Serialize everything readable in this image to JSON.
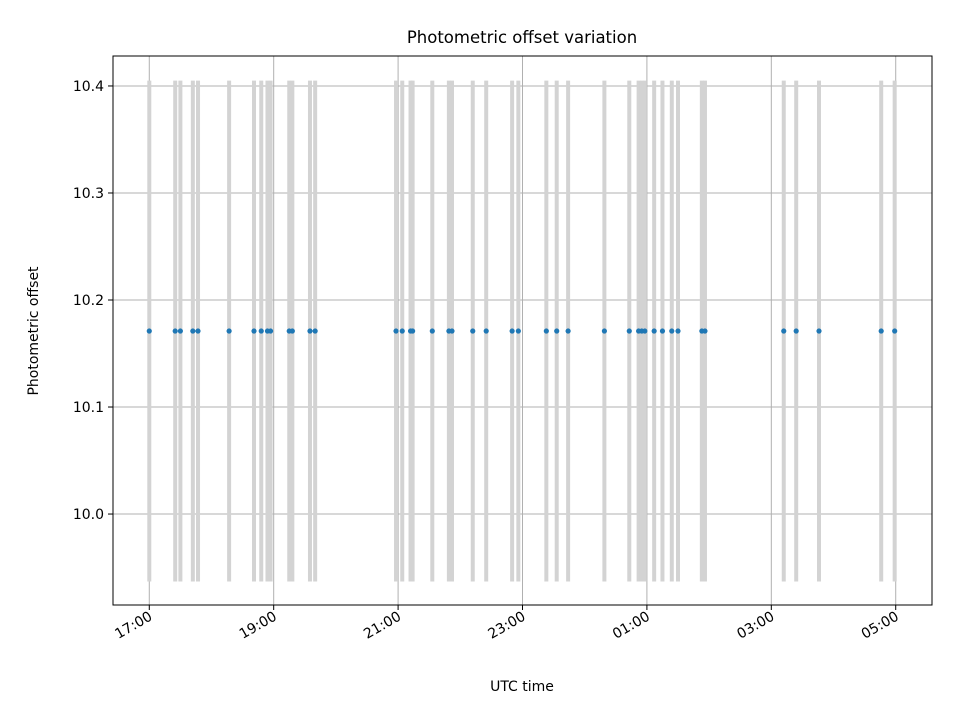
{
  "chart_data": {
    "type": "scatter",
    "title": "Photometric offset variation",
    "xlabel": "UTC time",
    "ylabel": "Photometric offset",
    "x_axis": {
      "type": "time",
      "min": "2000-01-01T16:25",
      "max": "2000-01-02T05:35",
      "ticks": [
        {
          "value": "2000-01-01T17:00",
          "label": "17:00"
        },
        {
          "value": "2000-01-01T19:00",
          "label": "19:00"
        },
        {
          "value": "2000-01-01T21:00",
          "label": "21:00"
        },
        {
          "value": "2000-01-01T23:00",
          "label": "23:00"
        },
        {
          "value": "2000-01-02T01:00",
          "label": "01:00"
        },
        {
          "value": "2000-01-02T03:00",
          "label": "03:00"
        },
        {
          "value": "2000-01-02T05:00",
          "label": "05:00"
        }
      ]
    },
    "y_axis": {
      "min": 9.915,
      "max": 10.428,
      "ticks": [
        {
          "value": 10.0,
          "label": "10.0"
        },
        {
          "value": 10.1,
          "label": "10.1"
        },
        {
          "value": 10.2,
          "label": "10.2"
        },
        {
          "value": 10.3,
          "label": "10.3"
        },
        {
          "value": 10.4,
          "label": "10.4"
        }
      ]
    },
    "grid": true,
    "series": [
      {
        "color": "#1f77b4",
        "marker_color": "#1f77b4",
        "errorbar_color": "#d3d3d3",
        "y_value": 10.171,
        "error": 0.234,
        "x": [
          "2000-01-01T17:00",
          "2000-01-01T17:25",
          "2000-01-01T17:30",
          "2000-01-01T17:42",
          "2000-01-01T17:47",
          "2000-01-01T18:17",
          "2000-01-01T18:41",
          "2000-01-01T18:48",
          "2000-01-01T18:54",
          "2000-01-01T18:57",
          "2000-01-01T19:15",
          "2000-01-01T19:18",
          "2000-01-01T19:35",
          "2000-01-01T19:40",
          "2000-01-01T20:58",
          "2000-01-01T21:04",
          "2000-01-01T21:12",
          "2000-01-01T21:14",
          "2000-01-01T21:33",
          "2000-01-01T21:49",
          "2000-01-01T21:52",
          "2000-01-01T22:12",
          "2000-01-01T22:25",
          "2000-01-01T22:50",
          "2000-01-01T22:56",
          "2000-01-01T23:23",
          "2000-01-01T23:33",
          "2000-01-01T23:44",
          "2000-01-02T00:19",
          "2000-01-02T00:43",
          "2000-01-02T00:52",
          "2000-01-02T00:55",
          "2000-01-02T00:58",
          "2000-01-02T01:07",
          "2000-01-02T01:15",
          "2000-01-02T01:24",
          "2000-01-02T01:30",
          "2000-01-02T01:53",
          "2000-01-02T01:56",
          "2000-01-02T03:12",
          "2000-01-02T03:24",
          "2000-01-02T03:46",
          "2000-01-02T04:46",
          "2000-01-02T04:59"
        ]
      }
    ]
  }
}
